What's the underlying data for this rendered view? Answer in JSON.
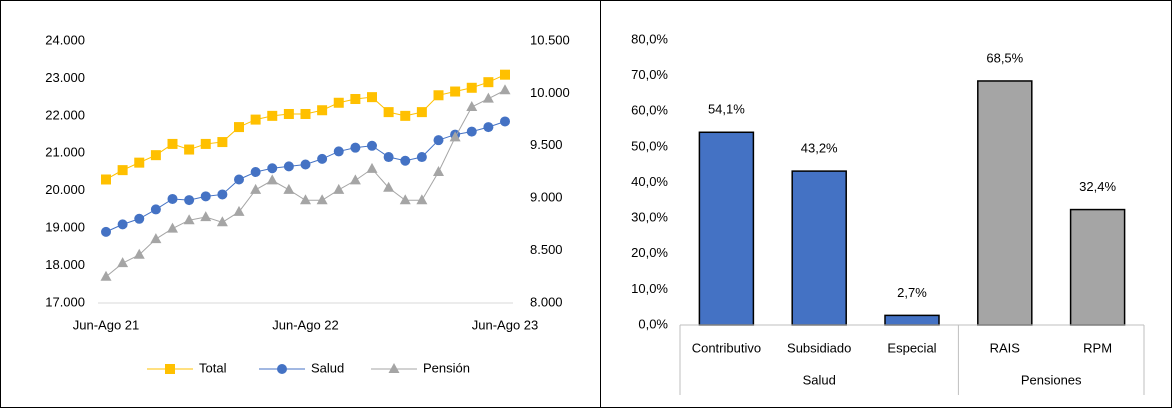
{
  "chart_data": [
    {
      "type": "line",
      "categories": [
        "Jun-Ago 21",
        null,
        null,
        null,
        null,
        null,
        null,
        null,
        null,
        null,
        null,
        null,
        "Jun-Ago 22",
        null,
        null,
        null,
        null,
        null,
        null,
        null,
        null,
        null,
        null,
        null,
        "Jun-Ago 23"
      ],
      "series": [
        {
          "name": "Total",
          "color": "#ffc000",
          "marker": "square",
          "values": [
            20300,
            20550,
            20750,
            20950,
            21250,
            21100,
            21250,
            21300,
            21700,
            21900,
            22000,
            22050,
            22050,
            22150,
            22350,
            22450,
            22500,
            22100,
            22000,
            22100,
            22550,
            22650,
            22750,
            22900,
            23100
          ]
        },
        {
          "name": "Salud",
          "color": "#4472c4",
          "marker": "circle",
          "values": [
            18900,
            19100,
            19250,
            19500,
            19780,
            19750,
            19850,
            19900,
            20300,
            20500,
            20600,
            20650,
            20700,
            20850,
            21050,
            21150,
            21200,
            20900,
            20800,
            20900,
            21350,
            21500,
            21580,
            21700,
            21850
          ]
        },
        {
          "name": "Pensión",
          "color": "#a5a5a5",
          "marker": "triangle",
          "axis": "y2",
          "values": [
            8250,
            8380,
            8460,
            8610,
            8710,
            8790,
            8820,
            8770,
            8870,
            9080,
            9170,
            9080,
            8980,
            8980,
            9080,
            9170,
            9280,
            9100,
            8980,
            8980,
            9250,
            9580,
            9870,
            9950,
            10030
          ]
        }
      ],
      "ylim": [
        17000,
        24000
      ],
      "yticks": [
        {
          "value": 17000,
          "label": "17.000"
        },
        {
          "value": 18000,
          "label": "18.000"
        },
        {
          "value": 19000,
          "label": "19.000"
        },
        {
          "value": 20000,
          "label": "20.000"
        },
        {
          "value": 21000,
          "label": "21.000"
        },
        {
          "value": 22000,
          "label": "22.000"
        },
        {
          "value": 23000,
          "label": "23.000"
        },
        {
          "value": 24000,
          "label": "24.000"
        }
      ],
      "y2lim": [
        8000,
        10500
      ],
      "y2ticks": [
        {
          "value": 8000,
          "label": "8.000"
        },
        {
          "value": 8500,
          "label": "8.500"
        },
        {
          "value": 9000,
          "label": "9.000"
        },
        {
          "value": 9500,
          "label": "9.500"
        },
        {
          "value": 10000,
          "label": "10.000"
        },
        {
          "value": 10500,
          "label": "10.500"
        }
      ],
      "legend": "bottom"
    },
    {
      "type": "bar",
      "groups": [
        {
          "label": "Salud",
          "color": "#4472c4",
          "categories": [
            "Contributivo",
            "Subsidiado",
            "Especial"
          ],
          "values": [
            54.1,
            43.2,
            2.7
          ],
          "value_labels": [
            "54,1%",
            "43,2%",
            "2,7%"
          ]
        },
        {
          "label": "Pensiones",
          "color": "#a5a5a5",
          "categories": [
            "RAIS",
            "RPM"
          ],
          "values": [
            68.5,
            32.4
          ],
          "value_labels": [
            "68,5%",
            "32,4%"
          ]
        }
      ],
      "ylim": [
        0,
        80
      ],
      "yticks": [
        {
          "value": 0,
          "label": "0,0%"
        },
        {
          "value": 10,
          "label": "10,0%"
        },
        {
          "value": 20,
          "label": "20,0%"
        },
        {
          "value": 30,
          "label": "30,0%"
        },
        {
          "value": 40,
          "label": "40,0%"
        },
        {
          "value": 50,
          "label": "50,0%"
        },
        {
          "value": 60,
          "label": "60,0%"
        },
        {
          "value": 70,
          "label": "70,0%"
        },
        {
          "value": 80,
          "label": "80,0%"
        }
      ]
    }
  ]
}
